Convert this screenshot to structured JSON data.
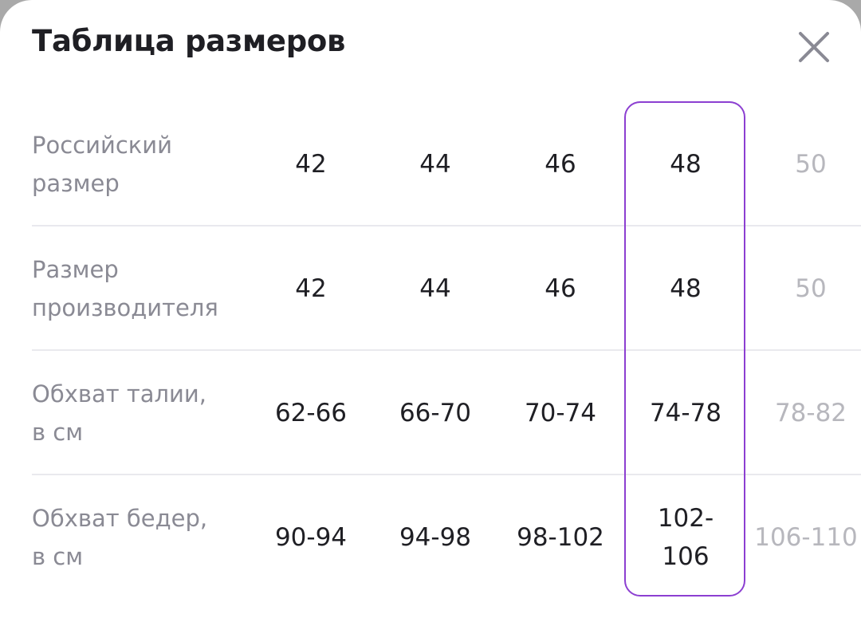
{
  "modal": {
    "title": "Таблица размеров",
    "close_icon": "close-icon",
    "accent_color": "#8c3fd1",
    "selected_column": "48"
  },
  "table": {
    "rows": [
      {
        "label": "Российский\nразмер",
        "cells": [
          "42",
          "44",
          "46",
          "48",
          "50"
        ]
      },
      {
        "label": "Размер\nпроизводителя",
        "cells": [
          "42",
          "44",
          "46",
          "48",
          "50"
        ]
      },
      {
        "label": "Обхват талии,\nв см",
        "cells": [
          "62-66",
          "66-70",
          "70-74",
          "74-78",
          "78-82"
        ]
      },
      {
        "label": "Обхват бедер,\nв см",
        "cells": [
          "90-94",
          "94-98",
          "98-102",
          "102-\n106",
          "106-110"
        ]
      }
    ]
  }
}
